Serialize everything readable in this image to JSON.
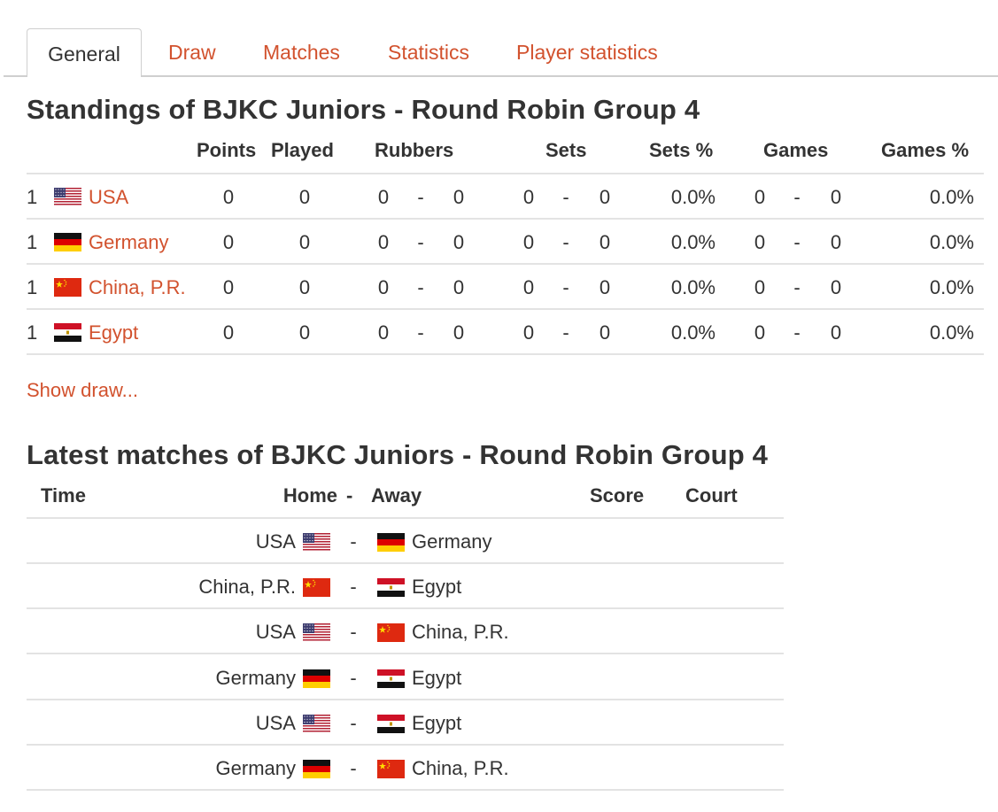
{
  "tabs": [
    {
      "label": "General",
      "active": true
    },
    {
      "label": "Draw"
    },
    {
      "label": "Matches"
    },
    {
      "label": "Statistics"
    },
    {
      "label": "Player statistics"
    }
  ],
  "standings": {
    "title": "Standings of BJKC Juniors - Round Robin Group 4",
    "headers": {
      "points": "Points",
      "played": "Played",
      "rubbers": "Rubbers",
      "sets": "Sets",
      "sets_pct": "Sets %",
      "games": "Games",
      "games_pct": "Games %"
    },
    "rows": [
      {
        "rank": "1",
        "team": "USA",
        "flag": "usa",
        "points": "0",
        "played": "0",
        "rubbers_won": "0",
        "rubbers_lost": "0",
        "sets_won": "0",
        "sets_lost": "0",
        "sets_pct": "0.0%",
        "games_won": "0",
        "games_lost": "0",
        "games_pct": "0.0%"
      },
      {
        "rank": "1",
        "team": "Germany",
        "flag": "germany",
        "points": "0",
        "played": "0",
        "rubbers_won": "0",
        "rubbers_lost": "0",
        "sets_won": "0",
        "sets_lost": "0",
        "sets_pct": "0.0%",
        "games_won": "0",
        "games_lost": "0",
        "games_pct": "0.0%"
      },
      {
        "rank": "1",
        "team": "China, P.R.",
        "flag": "china",
        "points": "0",
        "played": "0",
        "rubbers_won": "0",
        "rubbers_lost": "0",
        "sets_won": "0",
        "sets_lost": "0",
        "sets_pct": "0.0%",
        "games_won": "0",
        "games_lost": "0",
        "games_pct": "0.0%"
      },
      {
        "rank": "1",
        "team": "Egypt",
        "flag": "egypt",
        "points": "0",
        "played": "0",
        "rubbers_won": "0",
        "rubbers_lost": "0",
        "sets_won": "0",
        "sets_lost": "0",
        "sets_pct": "0.0%",
        "games_won": "0",
        "games_lost": "0",
        "games_pct": "0.0%"
      }
    ],
    "dash": "-",
    "show_draw_label": "Show draw..."
  },
  "matches": {
    "title": "Latest matches of BJKC Juniors - Round Robin Group 4",
    "headers": {
      "time": "Time",
      "home": "Home",
      "sep": "-",
      "away": "Away",
      "score": "Score",
      "court": "Court"
    },
    "rows": [
      {
        "home": "USA",
        "home_flag": "usa",
        "away": "Germany",
        "away_flag": "germany"
      },
      {
        "home": "China, P.R.",
        "home_flag": "china",
        "away": "Egypt",
        "away_flag": "egypt"
      },
      {
        "home": "USA",
        "home_flag": "usa",
        "away": "China, P.R.",
        "away_flag": "china"
      },
      {
        "home": "Germany",
        "home_flag": "germany",
        "away": "Egypt",
        "away_flag": "egypt"
      },
      {
        "home": "USA",
        "home_flag": "usa",
        "away": "Egypt",
        "away_flag": "egypt"
      },
      {
        "home": "Germany",
        "home_flag": "germany",
        "away": "China, P.R.",
        "away_flag": "china"
      }
    ],
    "dash": "-"
  },
  "colors": {
    "accent": "#d2522e",
    "text": "#333333",
    "rule": "#e3e3e3"
  }
}
